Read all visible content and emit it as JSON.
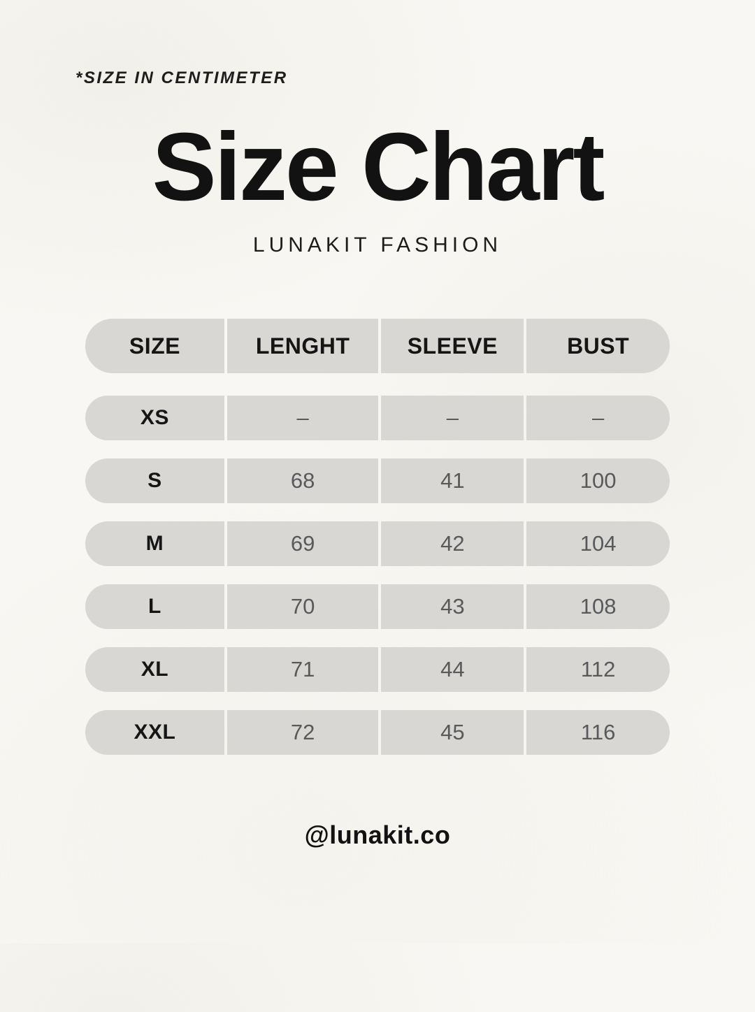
{
  "note": "*SIZE IN CENTIMETER",
  "title": "Size Chart",
  "subtitle": "LUNAKIT FASHION",
  "footer": {
    "handle": "@lunakit.co"
  },
  "colors": {
    "background": "#f8f7f3",
    "row_fill": "#d8d7d4",
    "text_primary": "#151515",
    "text_values": "#58595b"
  },
  "table": {
    "header": [
      "SIZE",
      "LENGHT",
      "SLEEVE",
      "BUST"
    ],
    "rows": [
      {
        "size": "XS",
        "values": [
          "–",
          "–",
          "–"
        ]
      },
      {
        "size": "S",
        "values": [
          "68",
          "41",
          "100"
        ]
      },
      {
        "size": "M",
        "values": [
          "69",
          "42",
          "104"
        ]
      },
      {
        "size": "L",
        "values": [
          "70",
          "43",
          "108"
        ]
      },
      {
        "size": "XL",
        "values": [
          "71",
          "44",
          "112"
        ]
      },
      {
        "size": "XXL",
        "values": [
          "72",
          "45",
          "116"
        ]
      }
    ]
  },
  "chart_data": {
    "type": "table",
    "title": "Size Chart",
    "subtitle": "LUNAKIT FASHION",
    "units_note": "*SIZE IN CENTIMETER",
    "columns": [
      "SIZE",
      "LENGHT",
      "SLEEVE",
      "BUST"
    ],
    "rows": [
      [
        "XS",
        "–",
        "–",
        "–"
      ],
      [
        "S",
        68,
        41,
        100
      ],
      [
        "M",
        69,
        42,
        104
      ],
      [
        "L",
        70,
        43,
        108
      ],
      [
        "XL",
        71,
        44,
        112
      ],
      [
        "XXL",
        72,
        45,
        116
      ]
    ]
  }
}
